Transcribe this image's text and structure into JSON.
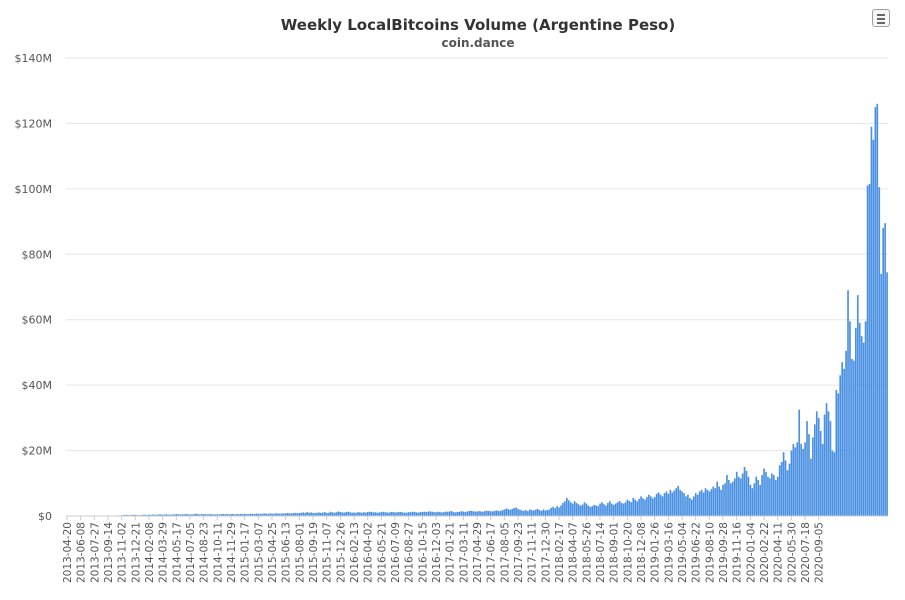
{
  "chart_data": {
    "type": "bar",
    "title": "Weekly LocalBitcoins Volume (Argentine Peso)",
    "subtitle": "coin.dance",
    "ylim": [
      0,
      140000000
    ],
    "yticks": [
      0,
      20000000,
      40000000,
      60000000,
      80000000,
      100000000,
      120000000,
      140000000
    ],
    "ytick_labels": [
      "$0",
      "$20M",
      "$40M",
      "$60M",
      "$80M",
      "$100M",
      "$120M",
      "$140M"
    ],
    "x_start_date": "2013-04-20",
    "bar_color": "#4a90e2",
    "categories": [
      "2013-04-20",
      "2013-06-08",
      "2013-07-27",
      "2013-09-14",
      "2013-11-02",
      "2013-12-21",
      "2014-02-08",
      "2014-03-29",
      "2014-05-17",
      "2014-07-05",
      "2014-08-23",
      "2014-10-11",
      "2014-11-29",
      "2015-01-17",
      "2015-03-07",
      "2015-04-25",
      "2015-06-13",
      "2015-08-01",
      "2015-09-19",
      "2015-11-07",
      "2015-12-26",
      "2016-02-13",
      "2016-04-02",
      "2016-05-21",
      "2016-07-09",
      "2016-08-27",
      "2016-10-15",
      "2016-12-03",
      "2017-01-21",
      "2017-03-11",
      "2017-04-29",
      "2017-06-17",
      "2017-08-05",
      "2017-09-23",
      "2017-11-11",
      "2017-12-30",
      "2018-02-17",
      "2018-04-07",
      "2018-05-26",
      "2018-07-14",
      "2018-09-01",
      "2018-10-20",
      "2018-12-08",
      "2019-01-26",
      "2019-03-16",
      "2019-05-04",
      "2019-06-22",
      "2019-08-10",
      "2019-09-28",
      "2019-11-16",
      "2020-01-04",
      "2020-02-22",
      "2020-04-11",
      "2020-05-30",
      "2020-07-18",
      "2020-09-05"
    ],
    "values_millions": [
      0.02,
      0.04,
      0.03,
      0.05,
      0.08,
      0.1,
      0.08,
      0.06,
      0.1,
      0.12,
      0.05,
      0.06,
      0.05,
      0.07,
      0.04,
      0.05,
      0.08,
      0.1,
      0.09,
      0.12,
      0.15,
      0.18,
      0.12,
      0.15,
      0.1,
      0.12,
      0.2,
      0.18,
      0.22,
      0.3,
      0.35,
      0.28,
      0.25,
      0.32,
      0.4,
      0.35,
      0.28,
      0.22,
      0.3,
      0.35,
      0.4,
      0.3,
      0.42,
      0.38,
      0.45,
      0.4,
      0.35,
      0.5,
      0.48,
      0.4,
      0.45,
      0.52,
      0.42,
      0.4,
      0.45,
      0.5,
      0.6,
      0.55,
      0.48,
      0.52,
      0.5,
      0.6,
      0.55,
      0.48,
      0.5,
      0.55,
      0.7,
      0.6,
      0.45,
      0.62,
      0.58,
      0.52,
      0.48,
      0.6,
      0.55,
      0.5,
      0.48,
      0.52,
      0.45,
      0.58,
      0.62,
      0.55,
      0.6,
      0.5,
      0.58,
      0.65,
      0.5,
      0.6,
      0.55,
      0.62,
      0.58,
      0.68,
      0.6,
      0.55,
      0.7,
      0.65,
      0.62,
      0.75,
      0.68,
      0.62,
      0.7,
      0.78,
      0.72,
      0.65,
      0.8,
      0.75,
      0.7,
      0.85,
      0.78,
      0.72,
      0.8,
      0.75,
      0.85,
      0.9,
      0.82,
      0.78,
      0.9,
      0.95,
      0.85,
      0.9,
      1.0,
      1.1,
      0.95,
      1.2,
      1.0,
      1.1,
      0.95,
      0.9,
      1.0,
      1.1,
      0.95,
      1.05,
      1.2,
      0.95,
      1.0,
      1.3,
      1.1,
      1.0,
      1.15,
      1.4,
      1.2,
      1.1,
      1.05,
      1.2,
      1.3,
      1.15,
      1.0,
      1.1,
      0.95,
      1.2,
      1.1,
      1.0,
      1.15,
      1.05,
      1.2,
      1.3,
      1.25,
      1.1,
      1.15,
      1.0,
      1.1,
      1.2,
      1.3,
      1.15,
      1.1,
      1.05,
      1.25,
      1.2,
      1.1,
      1.15,
      1.2,
      1.25,
      1.1,
      1.0,
      1.05,
      1.2,
      1.15,
      1.3,
      1.25,
      1.1,
      1.05,
      1.2,
      1.25,
      1.3,
      1.2,
      1.35,
      1.4,
      1.3,
      1.2,
      1.15,
      1.3,
      1.25,
      1.1,
      1.2,
      1.35,
      1.3,
      1.4,
      1.5,
      1.2,
      1.1,
      1.25,
      1.3,
      1.45,
      1.35,
      1.2,
      1.4,
      1.5,
      1.6,
      1.45,
      1.4,
      1.35,
      1.5,
      1.4,
      1.3,
      1.5,
      1.6,
      1.55,
      1.45,
      1.4,
      1.6,
      1.7,
      1.5,
      1.55,
      1.8,
      2.0,
      2.3,
      2.1,
      1.9,
      2.2,
      2.4,
      2.6,
      2.2,
      1.9,
      1.7,
      1.6,
      1.8,
      1.5,
      2.0,
      1.8,
      1.7,
      1.9,
      2.2,
      1.8,
      1.6,
      2.0,
      1.7,
      1.8,
      2.0,
      2.5,
      2.8,
      2.4,
      3.0,
      2.6,
      3.2,
      4.0,
      4.5,
      5.5,
      4.8,
      4.2,
      3.8,
      4.5,
      4.0,
      3.6,
      3.2,
      3.5,
      4.2,
      3.8,
      3.2,
      2.8,
      3.0,
      3.4,
      3.2,
      3.0,
      3.8,
      4.2,
      3.6,
      3.2,
      4.0,
      4.5,
      3.8,
      3.4,
      3.8,
      4.2,
      4.6,
      4.0,
      3.8,
      4.2,
      5.0,
      4.6,
      4.2,
      5.5,
      5.0,
      4.5,
      5.2,
      6.0,
      5.4,
      5.0,
      5.8,
      6.5,
      6.0,
      5.4,
      5.8,
      6.8,
      7.2,
      6.5,
      6.0,
      7.0,
      7.5,
      6.8,
      8.0,
      7.2,
      7.8,
      8.5,
      9.2,
      8.0,
      7.5,
      7.0,
      6.0,
      6.5,
      5.5,
      5.0,
      6.0,
      7.0,
      6.5,
      7.5,
      8.0,
      7.2,
      8.5,
      8.0,
      7.5,
      8.2,
      9.0,
      8.5,
      10.5,
      9.0,
      8.0,
      9.5,
      10.0,
      12.5,
      11.0,
      10.0,
      10.5,
      11.5,
      13.5,
      12.0,
      11.5,
      13.0,
      15.0,
      13.8,
      12.0,
      9.5,
      8.5,
      10.0,
      12.0,
      11.0,
      9.5,
      12.5,
      14.5,
      13.5,
      12.0,
      11.5,
      13.0,
      12.5,
      11.0,
      12.0,
      15.5,
      16.5,
      19.5,
      17.0,
      14.0,
      16.0,
      20.0,
      22.0,
      21.0,
      22.5,
      32.5,
      22.0,
      20.5,
      22.5,
      29.0,
      25.0,
      17.5,
      24.0,
      28.0,
      32.0,
      30.0,
      26.0,
      22.0,
      31.0,
      34.5,
      32.0,
      29.0,
      20.0,
      19.5,
      38.5,
      37.5,
      43.0,
      47.0,
      45.0,
      50.5,
      69.0,
      59.5,
      48.0,
      47.5,
      57.5,
      67.5,
      59.0,
      55.0,
      53.0,
      59.5,
      101.0,
      101.5,
      119.0,
      115.0,
      125.0,
      126.0,
      100.5,
      74.0,
      88.0,
      89.5,
      74.5
    ]
  }
}
